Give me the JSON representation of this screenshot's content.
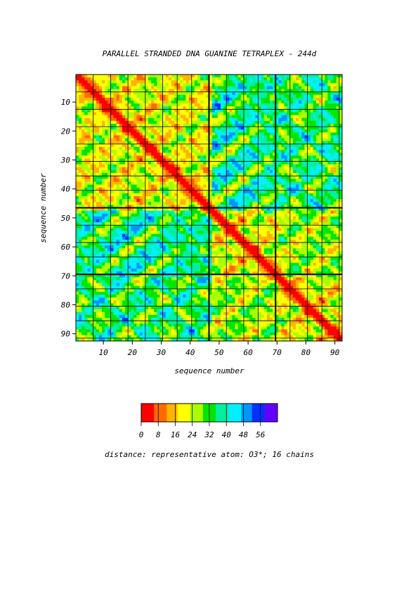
{
  "chart_data": {
    "type": "heatmap",
    "title": "PARALLEL STRANDED DNA GUANINE TETRAPLEX - 244d",
    "xlabel": "sequence number",
    "ylabel": "sequence number",
    "x_range": [
      1,
      92
    ],
    "y_range": [
      1,
      92
    ],
    "x_ticks": [
      "10",
      "20",
      "30",
      "40",
      "50",
      "60",
      "70",
      "80",
      "90"
    ],
    "y_ticks": [
      "10",
      "20",
      "30",
      "40",
      "50",
      "60",
      "70",
      "80",
      "90"
    ],
    "tick_values": [
      10,
      20,
      30,
      40,
      50,
      60,
      70,
      80,
      90
    ],
    "chain_boundaries": [
      1,
      7,
      13,
      19,
      25,
      31,
      36,
      41,
      47,
      53,
      59,
      64,
      70,
      75,
      81,
      86,
      92
    ],
    "major_block_boundaries": [
      47,
      70
    ],
    "colorbar": {
      "ticks": [
        "0",
        "8",
        "16",
        "24",
        "32",
        "40",
        "48",
        "56"
      ],
      "tick_values": [
        0,
        8,
        16,
        24,
        32,
        40,
        48,
        56
      ],
      "range": [
        0,
        64
      ],
      "colors": [
        "#ff0000",
        "#ff6a00",
        "#ffb400",
        "#ffff00",
        "#aaff00",
        "#00e600",
        "#00f0a0",
        "#00f0ff",
        "#0096ff",
        "#0032ff",
        "#6400ff"
      ]
    },
    "caption": "distance: representative atom: O3*; 16 chains",
    "grid": true
  }
}
